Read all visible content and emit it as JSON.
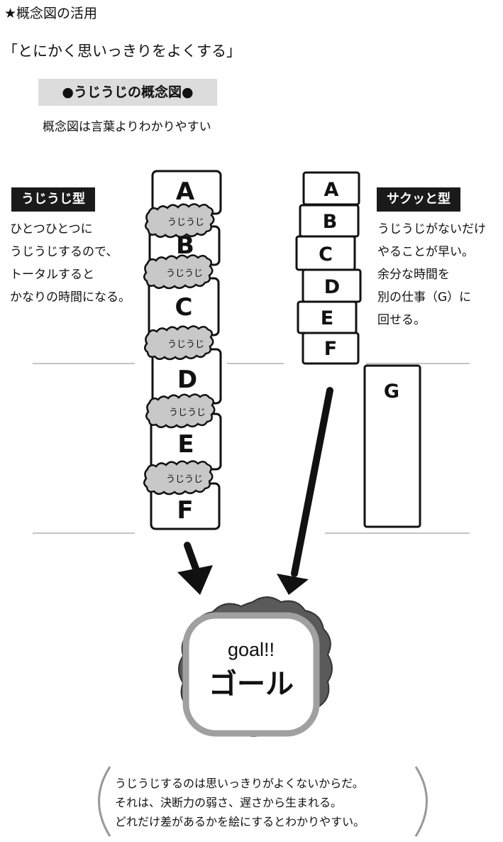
{
  "heading": "★概念図の活用",
  "subtitle": "「とにかく思いっきりをよくする」",
  "concept": {
    "title": "●うじうじの概念図●",
    "note": "概念図は言葉よりわかりやすい"
  },
  "left": {
    "tag": "うじうじ型",
    "description": [
      "ひとつひとつに",
      "うじうじするので、",
      "トータルすると",
      "かなりの時間になる。"
    ],
    "blocks": [
      "A",
      "B",
      "C",
      "D",
      "E",
      "F"
    ],
    "wiggle_label": "うじうじ"
  },
  "right": {
    "tag": "サクッと型",
    "description": [
      "うじうじがないだけ",
      "やることが早い。",
      "余分な時間を",
      "別の仕事（G）に",
      "回せる。"
    ],
    "blocks": [
      "A",
      "B",
      "C",
      "D",
      "E",
      "F"
    ],
    "extra_block": "G"
  },
  "goal": {
    "english": "goal!!",
    "japanese": "ゴール"
  },
  "summary": [
    "うじうじするのは思いっきりがよくないからだ。",
    "それは、決断力の弱さ、遅さから生まれる。",
    "どれだけ差があるかを絵にするとわかりやすい。"
  ]
}
